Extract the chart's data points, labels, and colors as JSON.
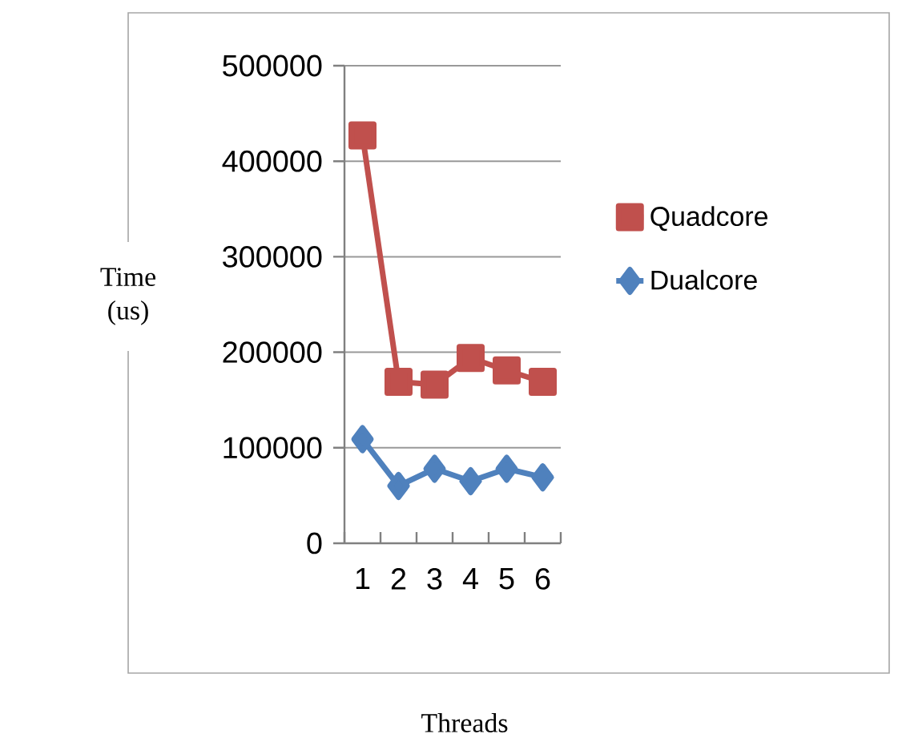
{
  "chart_data": {
    "type": "line",
    "xlabel": "Threads",
    "ylabel": "Time (us)",
    "categories": [
      "1",
      "2",
      "3",
      "4",
      "5",
      "6"
    ],
    "series": [
      {
        "name": "Quadcore",
        "color": "#c0504d",
        "marker": "square",
        "values": [
          427000,
          169000,
          166000,
          194000,
          181000,
          169000
        ]
      },
      {
        "name": "Dualcore",
        "color": "#4f81bd",
        "marker": "diamond",
        "values": [
          109000,
          60000,
          78000,
          65000,
          78000,
          69000
        ]
      }
    ],
    "ylim": [
      0,
      500000
    ],
    "yticks": [
      0,
      100000,
      200000,
      300000,
      400000,
      500000
    ],
    "grid": "y",
    "legend": "right",
    "line_style": "solid"
  }
}
